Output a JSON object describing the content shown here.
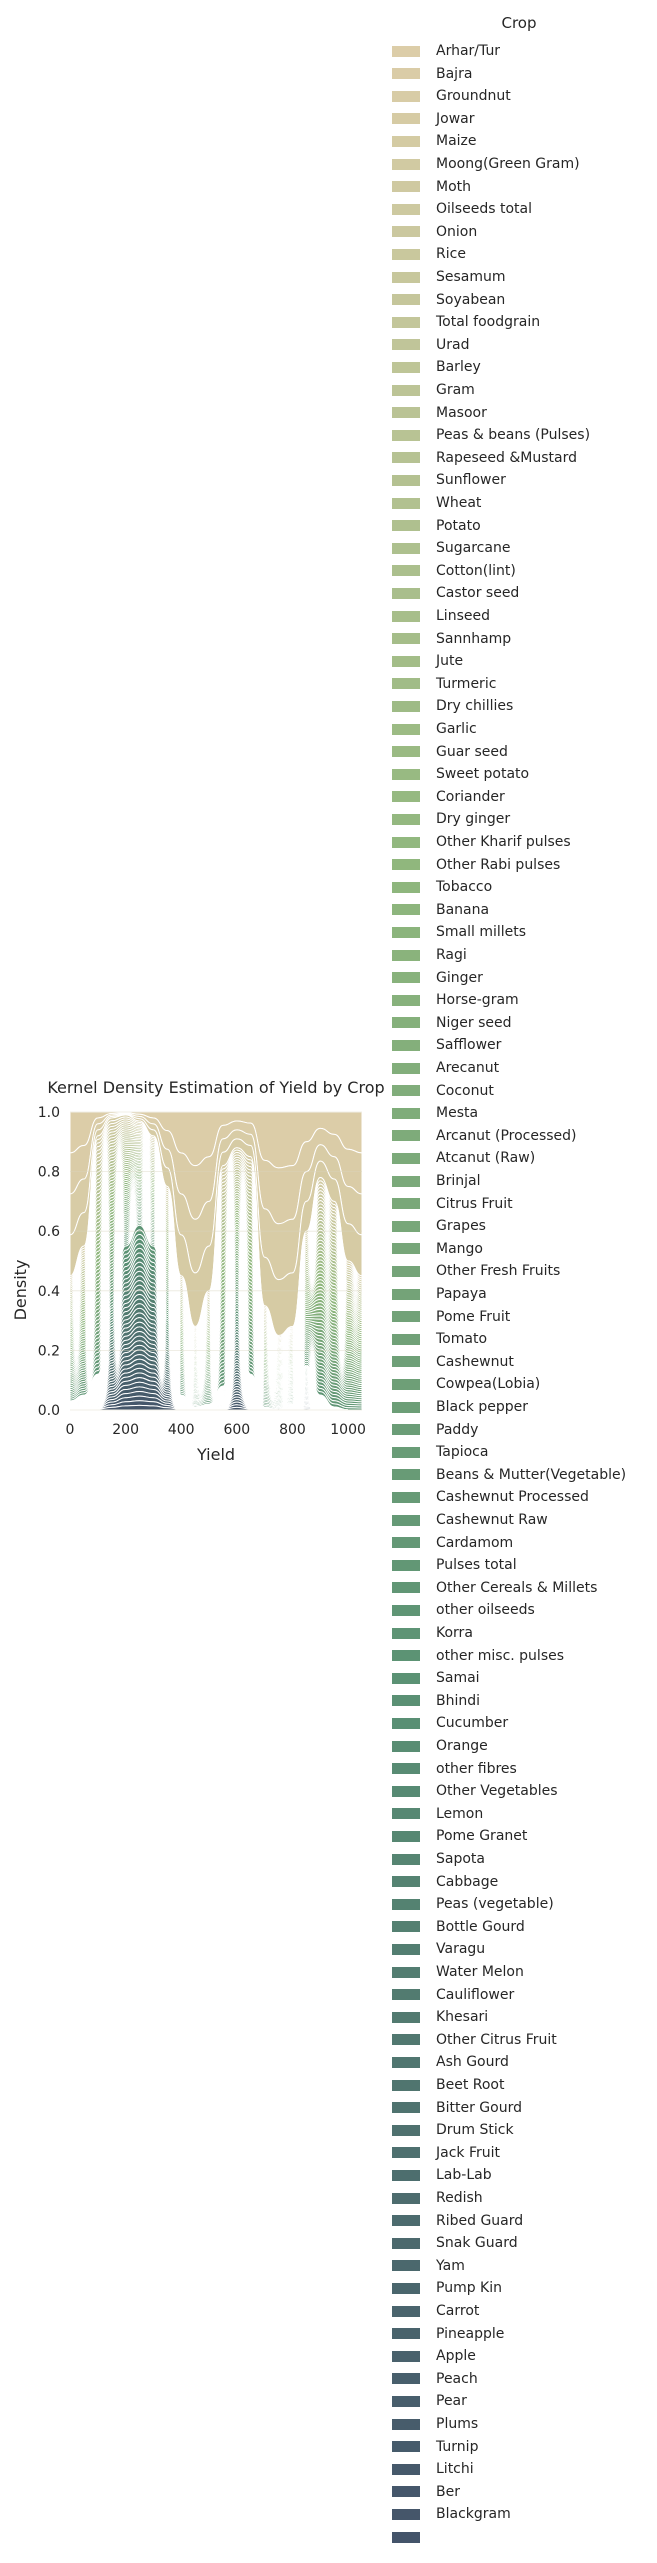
{
  "chart_data": {
    "type": "area",
    "title": "Kernel Density Estimation of Yield by Crop",
    "xlabel": "Yield",
    "ylabel": "Density",
    "xlim": [
      0,
      1050
    ],
    "ylim": [
      0,
      1.0
    ],
    "xticks": [
      "0",
      "200",
      "400",
      "600",
      "800",
      "1000"
    ],
    "yticks": [
      "0.0",
      "0.2",
      "0.4",
      "0.6",
      "0.8",
      "1.0"
    ],
    "grid": true,
    "stacked": "fill",
    "legend": {
      "title": "Crop",
      "placement": "outside-right",
      "entries": [
        "Arhar/Tur",
        "Bajra",
        "Groundnut",
        "Jowar",
        "Maize",
        "Moong(Green Gram)",
        "Moth",
        "Oilseeds total",
        "Onion",
        "Rice",
        "Sesamum",
        "Soyabean",
        "Total foodgrain",
        "Urad",
        "Barley",
        "Gram",
        "Masoor",
        "Peas & beans (Pulses)",
        "Rapeseed &Mustard",
        "Sunflower",
        "Wheat",
        "Potato",
        "Sugarcane",
        "Cotton(lint)",
        "Castor seed",
        "Linseed",
        "Sannhamp",
        "Jute",
        "Turmeric",
        "Dry chillies",
        "Garlic",
        "Guar seed",
        "Sweet potato",
        "Coriander",
        "Dry ginger",
        "Other Kharif pulses",
        "Other  Rabi pulses",
        "Tobacco",
        "Banana",
        "Small millets",
        "Ragi",
        "Ginger",
        "Horse-gram",
        "Niger seed",
        "Safflower",
        "Arecanut",
        "Coconut",
        "Mesta",
        "Arcanut (Processed)",
        "Atcanut (Raw)",
        "Brinjal",
        "Citrus Fruit",
        "Grapes",
        "Mango",
        "Other Fresh Fruits",
        "Papaya",
        "Pome Fruit",
        "Tomato",
        "Cashewnut",
        "Cowpea(Lobia)",
        "Black pepper",
        "Paddy",
        "Tapioca",
        "Beans & Mutter(Vegetable)",
        "Cashewnut Processed",
        "Cashewnut Raw",
        "Cardamom",
        "Pulses total",
        "Other Cereals & Millets",
        "other oilseeds",
        "Korra",
        "other misc. pulses",
        "Samai",
        "Bhindi",
        "Cucumber",
        "Orange",
        "other fibres",
        "Other Vegetables",
        "Lemon",
        "Pome Granet",
        "Sapota",
        "Cabbage",
        "Peas  (vegetable)",
        "Bottle Gourd",
        "Varagu",
        "Water Melon",
        "Cauliflower",
        "Khesari",
        "Other Citrus Fruit",
        "Ash Gourd",
        "Beet Root",
        "Bitter Gourd",
        "Drum Stick",
        "Jack Fruit",
        "Lab-Lab",
        "Redish",
        "Ribed Guard",
        "Snak Guard",
        "Yam",
        "Pump Kin",
        "Carrot",
        "Pineapple",
        "Apple",
        "Peach",
        "Pear",
        "Plums",
        "Turnip",
        "Litchi",
        "Ber",
        "Blackgram",
        ""
      ]
    },
    "palette": {
      "start": "#dccda8",
      "mid": "#8fb77d",
      "mid2": "#5a9174",
      "end": "#44546a",
      "grid": "#d9d4bf",
      "background": "#ffffff"
    },
    "density_shape": {
      "yield_points": [
        0,
        50,
        100,
        150,
        200,
        250,
        300,
        350,
        400,
        450,
        500,
        550,
        600,
        650,
        700,
        750,
        800,
        850,
        900,
        950,
        1000,
        1050
      ],
      "upper_share_of_first_crops": [
        0.55,
        0.45,
        0.08,
        0.02,
        0.01,
        0.03,
        0.08,
        0.25,
        0.55,
        0.72,
        0.6,
        0.18,
        0.12,
        0.15,
        0.65,
        0.75,
        0.72,
        0.4,
        0.22,
        0.3,
        0.5,
        0.55
      ],
      "lower_share_of_last_crops": [
        0.03,
        0.05,
        0.12,
        0.35,
        0.55,
        0.62,
        0.55,
        0.3,
        0.05,
        0.01,
        0.02,
        0.08,
        0.35,
        0.12,
        0.01,
        0.0,
        0.02,
        0.15,
        0.05,
        0.01,
        0.0,
        0.0
      ]
    }
  }
}
